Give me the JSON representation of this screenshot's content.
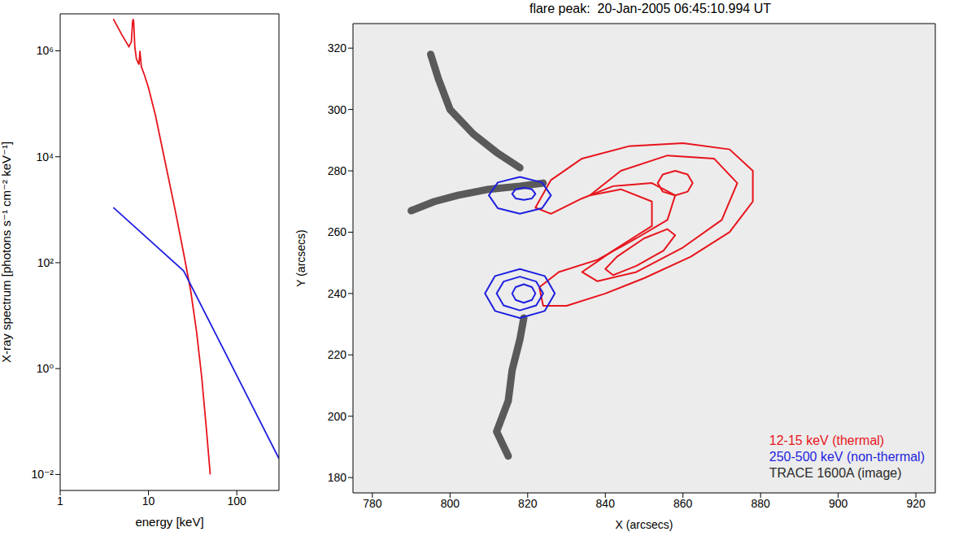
{
  "chart_data": [
    {
      "type": "line",
      "log": true,
      "x_label": "energy [keV]",
      "y_label": "X-ray spectrum [photons s⁻¹ cm⁻² keV⁻¹]",
      "xlim": [
        1,
        300
      ],
      "ylim": [
        0.005,
        5000000
      ],
      "xticks": [
        1,
        10,
        100
      ],
      "yticks": [
        {
          "value": 0.01,
          "label": "10⁻²"
        },
        {
          "value": 1,
          "label": "10⁰"
        },
        {
          "value": 100,
          "label": "10²"
        },
        {
          "value": 10000,
          "label": "10⁴"
        },
        {
          "value": 1000000,
          "label": "10⁶"
        }
      ],
      "series": [
        {
          "color": "#e8141c",
          "x": [
            4,
            5,
            6,
            6.4,
            6.6,
            6.7,
            6.8,
            7.0,
            7.3,
            7.8,
            8.0,
            8.3,
            9,
            10,
            12,
            15,
            20,
            25,
            30,
            35,
            40,
            45,
            50
          ],
          "values": [
            4000000,
            2000000,
            1200000,
            1500000,
            3500000,
            4000000,
            3500000,
            1200000,
            700000,
            550000,
            1000000,
            500000,
            350000,
            200000,
            60000,
            10000,
            1000,
            150,
            30,
            5,
            0.7,
            0.08,
            0.01
          ]
        },
        {
          "color": "#1f1fe0",
          "x": [
            4,
            25,
            300
          ],
          "values": [
            1100,
            70,
            0.02
          ]
        }
      ]
    },
    {
      "type": "contour",
      "title": "flare peak:  20-Jan-2005 06:45:10.994 UT",
      "x_label": "X (arcsecs)",
      "y_label": "Y (arcsecs)",
      "xlim": [
        775,
        925
      ],
      "ylim": [
        175,
        328
      ],
      "xticks": [
        780,
        800,
        820,
        840,
        860,
        880,
        900,
        920
      ],
      "yticks": [
        180,
        200,
        220,
        240,
        260,
        280,
        300,
        320
      ],
      "series": [
        {
          "name": "12-15 keV (thermal)",
          "color": "#e8141c",
          "contours": [
            [
              [
                822,
                268
              ],
              [
                826,
                277
              ],
              [
                834,
                284
              ],
              [
                846,
                288
              ],
              [
                860,
                289
              ],
              [
                872,
                287
              ],
              [
                878,
                280
              ],
              [
                878,
                270
              ],
              [
                872,
                260
              ],
              [
                862,
                252
              ],
              [
                850,
                245
              ],
              [
                840,
                240
              ],
              [
                830,
                236
              ],
              [
                824,
                236
              ],
              [
                823,
                242
              ],
              [
                828,
                247
              ],
              [
                838,
                251
              ],
              [
                848,
                258
              ],
              [
                856,
                264
              ],
              [
                858,
                272
              ],
              [
                852,
                276
              ],
              [
                842,
                275
              ],
              [
                834,
                271
              ],
              [
                826,
                266
              ]
            ],
            [
              [
                836,
                272
              ],
              [
                844,
                280
              ],
              [
                856,
                285
              ],
              [
                868,
                284
              ],
              [
                874,
                276
              ],
              [
                870,
                264
              ],
              [
                860,
                255
              ],
              [
                848,
                247
              ],
              [
                838,
                244
              ],
              [
                834,
                247
              ],
              [
                842,
                254
              ],
              [
                852,
                262
              ],
              [
                852,
                270
              ],
              [
                844,
                274
              ]
            ],
            [
              [
                862.5,
                276
              ],
              [
                861.2,
                278.8
              ],
              [
                858,
                280
              ],
              [
                854.8,
                278.8
              ],
              [
                853.5,
                276
              ],
              [
                854.8,
                273.2
              ],
              [
                858,
                272
              ],
              [
                861.2,
                273.2
              ]
            ],
            [
              [
                858,
                259
              ],
              [
                856,
                261
              ],
              [
                850,
                258
              ],
              [
                843,
                252
              ],
              [
                840,
                248
              ],
              [
                842,
                246
              ],
              [
                848,
                249
              ],
              [
                855,
                254
              ]
            ]
          ]
        },
        {
          "name": "250-500 keV (non-thermal)",
          "color": "#1f1fe0",
          "contours": [
            [
              [
                826,
                272
              ],
              [
                823.7,
                276.2
              ],
              [
                818,
                278
              ],
              [
                812.3,
                276.2
              ],
              [
                810,
                272
              ],
              [
                812.3,
                267.8
              ],
              [
                818,
                266
              ],
              [
                823.7,
                267.8
              ]
            ],
            [
              [
                822,
                272.5
              ],
              [
                821.1,
                274
              ],
              [
                819,
                274.5
              ],
              [
                816.9,
                274
              ],
              [
                816,
                272.5
              ],
              [
                816.9,
                271
              ],
              [
                819,
                270.5
              ],
              [
                821.1,
                271
              ]
            ],
            [
              [
                827,
                240
              ],
              [
                824.4,
                245.7
              ],
              [
                818,
                248
              ],
              [
                811.6,
                245.7
              ],
              [
                809,
                240
              ],
              [
                811.6,
                234.3
              ],
              [
                818,
                232
              ],
              [
                824.4,
                234.3
              ]
            ],
            [
              [
                824,
                240
              ],
              [
                822.2,
                243.9
              ],
              [
                818,
                245.5
              ],
              [
                813.8,
                243.9
              ],
              [
                812,
                240
              ],
              [
                813.8,
                236.1
              ],
              [
                818,
                234.5
              ],
              [
                822.2,
                236.1
              ]
            ],
            [
              [
                822,
                240
              ],
              [
                821.1,
                242.1
              ],
              [
                819,
                243
              ],
              [
                816.9,
                242.1
              ],
              [
                816,
                240
              ],
              [
                816.9,
                237.9
              ],
              [
                819,
                237
              ],
              [
                821.1,
                237.9
              ]
            ]
          ]
        },
        {
          "name": "TRACE 1600A (image)",
          "color": "#2a2a2a",
          "ribbons": [
            [
              [
                795,
                318
              ],
              [
                797,
                310
              ],
              [
                800,
                300
              ],
              [
                806,
                292
              ],
              [
                812,
                286
              ],
              [
                818,
                281
              ]
            ],
            [
              [
                790,
                267
              ],
              [
                796,
                270
              ],
              [
                802,
                272
              ],
              [
                810,
                274
              ],
              [
                818,
                275
              ],
              [
                824,
                276
              ]
            ],
            [
              [
                819,
                232
              ],
              [
                818,
                225
              ],
              [
                816,
                215
              ],
              [
                815,
                205
              ],
              [
                812,
                195
              ],
              [
                815,
                187
              ]
            ]
          ]
        }
      ]
    }
  ]
}
